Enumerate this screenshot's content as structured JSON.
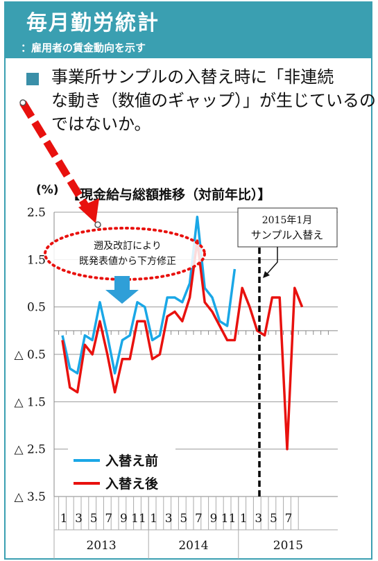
{
  "header": {
    "title": "毎月勤労統計",
    "subtitle": "：雇用者の賃金動向を示す"
  },
  "bullet_text": {
    "line1": "事業所サンプルの入替え時に「非連続",
    "line2": "な動き（数値のギャップ）」が生じているの",
    "line3": "ではないか。"
  },
  "colors": {
    "header_bg": "#3a9fb1",
    "before": "#1aa7e6",
    "after": "#e8110e",
    "arrow_red": "#e8110e",
    "arrow_blue": "#2f9fd8"
  },
  "chart_data": {
    "type": "line",
    "title": "【現金給与総額推移（対前年比）】",
    "ylabel": "(%)",
    "ylim": [
      -3.5,
      2.5
    ],
    "yticks": [
      {
        "value": 2.5,
        "label": "2.5"
      },
      {
        "value": 1.5,
        "label": "1.5"
      },
      {
        "value": 0.5,
        "label": "0.5"
      },
      {
        "value": -0.5,
        "label": "△ 0.5"
      },
      {
        "value": -1.5,
        "label": "△ 1.5"
      },
      {
        "value": -2.5,
        "label": "△ 2.5"
      },
      {
        "value": -3.5,
        "label": "△ 3.5"
      }
    ],
    "month_labels": [
      "1",
      "3",
      "5",
      "7",
      "9",
      "11",
      "1",
      "3",
      "5",
      "7",
      "9",
      "11",
      "1",
      "3",
      "5",
      "7"
    ],
    "year_labels": [
      "2013",
      "2014",
      "2015"
    ],
    "series": [
      {
        "name": "入替え前",
        "values": [
          -0.1,
          -0.8,
          -0.9,
          -0.1,
          -0.2,
          0.6,
          -0.1,
          -0.9,
          -0.2,
          -0.1,
          0.6,
          0.5,
          -0.2,
          -0.1,
          0.7,
          0.7,
          0.6,
          1.0,
          2.4,
          0.9,
          0.7,
          0.2,
          0.1,
          1.3
        ]
      },
      {
        "name": "入替え後",
        "values": [
          -0.2,
          -1.2,
          -1.3,
          -0.3,
          -0.5,
          0.2,
          -0.5,
          -1.3,
          -0.6,
          -0.6,
          0.2,
          0.2,
          -0.6,
          -0.5,
          0.3,
          0.4,
          0.2,
          0.7,
          1.9,
          0.6,
          0.4,
          0.1,
          -0.2,
          -0.2,
          0.9,
          0.5,
          0.0,
          -0.1,
          0.7,
          0.7,
          -2.5,
          0.9,
          0.5
        ]
      }
    ],
    "annotations": {
      "switch_label_line1": "2015年1月",
      "switch_label_line2": "サンプル入替え",
      "revision_line1": "遡及改訂により",
      "revision_line2": "既発表値から下方修正"
    },
    "legend": "bottom-left",
    "grid": true
  }
}
